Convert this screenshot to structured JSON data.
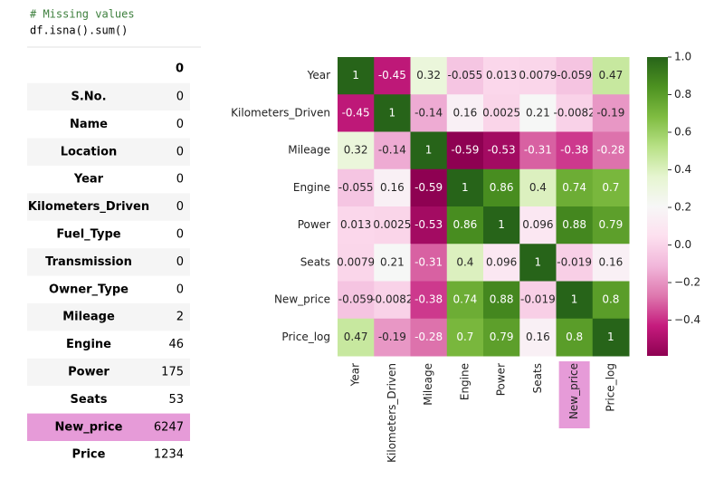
{
  "code": {
    "comment": "# Missing values",
    "line": "df.isna().sum()"
  },
  "table": {
    "column_header": "0",
    "rows": [
      [
        "S.No.",
        0
      ],
      [
        "Name",
        0
      ],
      [
        "Location",
        0
      ],
      [
        "Year",
        0
      ],
      [
        "Kilometers_Driven",
        0
      ],
      [
        "Fuel_Type",
        0
      ],
      [
        "Transmission",
        0
      ],
      [
        "Owner_Type",
        0
      ],
      [
        "Mileage",
        2
      ],
      [
        "Engine",
        46
      ],
      [
        "Power",
        175
      ],
      [
        "Seats",
        53
      ],
      [
        "New_price",
        6247
      ],
      [
        "Price",
        1234
      ]
    ],
    "highlighted_row": 12,
    "highlight_color": "#e69bd8"
  },
  "chart_data": {
    "type": "heatmap",
    "categories": [
      "Year",
      "Kilometers_Driven",
      "Mileage",
      "Engine",
      "Power",
      "Seats",
      "New_price",
      "Price_log"
    ],
    "values": [
      [
        1,
        -0.45,
        0.32,
        -0.055,
        0.013,
        0.0079,
        -0.059,
        0.47
      ],
      [
        -0.45,
        1,
        -0.14,
        0.16,
        0.0025,
        0.21,
        -0.0082,
        -0.19
      ],
      [
        0.32,
        -0.14,
        1,
        -0.59,
        -0.53,
        -0.31,
        -0.38,
        -0.28
      ],
      [
        -0.055,
        0.16,
        -0.59,
        1,
        0.86,
        0.4,
        0.74,
        0.7
      ],
      [
        0.013,
        0.0025,
        -0.53,
        0.86,
        1,
        0.096,
        0.88,
        0.79
      ],
      [
        0.0079,
        0.21,
        -0.31,
        0.4,
        0.096,
        1,
        -0.019,
        0.16
      ],
      [
        -0.059,
        -0.0082,
        -0.38,
        0.74,
        0.88,
        -0.019,
        1,
        0.8
      ],
      [
        0.47,
        -0.19,
        -0.28,
        0.7,
        0.79,
        0.16,
        0.8,
        1
      ]
    ],
    "colormap": [
      "#8e0152",
      "#c51b7d",
      "#de77ae",
      "#f1b6da",
      "#fde0ef",
      "#f7f7f7",
      "#e6f5d0",
      "#b8e186",
      "#7fbc41",
      "#4d9221",
      "#276419"
    ],
    "zlim": [
      -0.59,
      1
    ],
    "zticks": [
      {
        "value": 1,
        "label": "1.0"
      },
      {
        "value": 0.8,
        "label": "0.8"
      },
      {
        "value": 0.6,
        "label": "0.6"
      },
      {
        "value": 0.4,
        "label": "0.4"
      },
      {
        "value": 0.2,
        "label": "0.2"
      },
      {
        "value": 0,
        "label": "0.0"
      },
      {
        "value": -0.2,
        "label": "−0.2"
      },
      {
        "value": -0.4,
        "label": "−0.4"
      }
    ],
    "highlighted_column": 6,
    "highlight_color": "#e69bd8"
  }
}
